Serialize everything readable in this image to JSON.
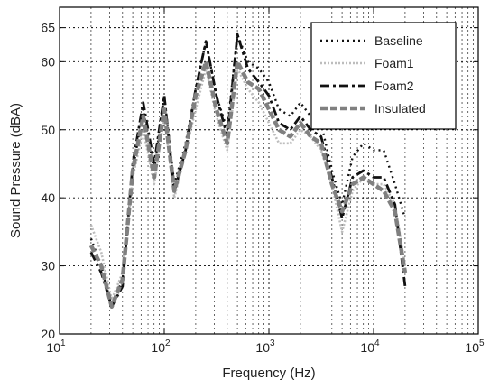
{
  "chart_data": {
    "type": "line",
    "title": "",
    "xlabel": "Frequency (Hz)",
    "ylabel": "Sound Pressure (dBA)",
    "xscale": "log",
    "xlim": [
      10,
      100000
    ],
    "ylim": [
      20,
      68
    ],
    "grid": true,
    "legend_position": "top-right",
    "x_ticks": [
      {
        "value": 10,
        "base": "10",
        "exp": "1"
      },
      {
        "value": 100,
        "base": "10",
        "exp": "2"
      },
      {
        "value": 1000,
        "base": "10",
        "exp": "3"
      },
      {
        "value": 10000,
        "base": "10",
        "exp": "4"
      },
      {
        "value": 100000,
        "base": "10",
        "exp": "5"
      }
    ],
    "y_ticks": [
      20,
      30,
      40,
      50,
      60,
      65
    ],
    "series": [
      {
        "name": "Baseline",
        "color": "#111111",
        "dash": "2,4",
        "width": 2.4,
        "points": [
          [
            20,
            34
          ],
          [
            25,
            30
          ],
          [
            31.5,
            24
          ],
          [
            40,
            28
          ],
          [
            50,
            44
          ],
          [
            63,
            53
          ],
          [
            80,
            44
          ],
          [
            100,
            55
          ],
          [
            125,
            42
          ],
          [
            160,
            48
          ],
          [
            200,
            56
          ],
          [
            250,
            63
          ],
          [
            315,
            55
          ],
          [
            400,
            50
          ],
          [
            500,
            64
          ],
          [
            630,
            60
          ],
          [
            800,
            59
          ],
          [
            1000,
            57
          ],
          [
            1250,
            53
          ],
          [
            1600,
            52
          ],
          [
            2000,
            54
          ],
          [
            2500,
            52
          ],
          [
            3150,
            51
          ],
          [
            4000,
            44
          ],
          [
            5000,
            39
          ],
          [
            6300,
            46
          ],
          [
            8000,
            48
          ],
          [
            10000,
            47
          ],
          [
            12500,
            47
          ],
          [
            16000,
            42
          ],
          [
            20000,
            37
          ]
        ]
      },
      {
        "name": "Foam1",
        "color": "#bdbdbd",
        "dash": "2,2",
        "width": 2.6,
        "points": [
          [
            20,
            36
          ],
          [
            25,
            32
          ],
          [
            31.5,
            25
          ],
          [
            40,
            29
          ],
          [
            50,
            43
          ],
          [
            63,
            50
          ],
          [
            80,
            42
          ],
          [
            100,
            52
          ],
          [
            125,
            40
          ],
          [
            160,
            47
          ],
          [
            200,
            53
          ],
          [
            250,
            59
          ],
          [
            315,
            52
          ],
          [
            400,
            47
          ],
          [
            500,
            59
          ],
          [
            630,
            56
          ],
          [
            800,
            54
          ],
          [
            1000,
            51
          ],
          [
            1250,
            48
          ],
          [
            1600,
            48
          ],
          [
            2000,
            50
          ],
          [
            2500,
            49
          ],
          [
            3150,
            47
          ],
          [
            4000,
            42
          ],
          [
            5000,
            35
          ],
          [
            6300,
            41
          ],
          [
            8000,
            43
          ],
          [
            10000,
            42
          ],
          [
            12500,
            42
          ],
          [
            16000,
            39
          ],
          [
            20000,
            30
          ]
        ]
      },
      {
        "name": "Foam2",
        "color": "#111111",
        "dash": "10,4,3,4",
        "width": 2.8,
        "points": [
          [
            20,
            32
          ],
          [
            25,
            29
          ],
          [
            31.5,
            24
          ],
          [
            40,
            27
          ],
          [
            50,
            45
          ],
          [
            63,
            54
          ],
          [
            80,
            45
          ],
          [
            100,
            55
          ],
          [
            125,
            41
          ],
          [
            160,
            47
          ],
          [
            200,
            56
          ],
          [
            250,
            63
          ],
          [
            315,
            55
          ],
          [
            400,
            49
          ],
          [
            500,
            64
          ],
          [
            630,
            59
          ],
          [
            800,
            57
          ],
          [
            1000,
            55
          ],
          [
            1250,
            51
          ],
          [
            1600,
            50
          ],
          [
            2000,
            52
          ],
          [
            2500,
            50
          ],
          [
            3150,
            49
          ],
          [
            4000,
            43
          ],
          [
            5000,
            37
          ],
          [
            6300,
            43
          ],
          [
            8000,
            44
          ],
          [
            10000,
            43
          ],
          [
            12500,
            43
          ],
          [
            16000,
            39
          ],
          [
            20000,
            27
          ]
        ]
      },
      {
        "name": "Insulated",
        "color": "#808080",
        "dash": "8,3",
        "width": 4.5,
        "points": [
          [
            20,
            33
          ],
          [
            25,
            30
          ],
          [
            31.5,
            24
          ],
          [
            40,
            28
          ],
          [
            50,
            44
          ],
          [
            63,
            52
          ],
          [
            80,
            43
          ],
          [
            100,
            53
          ],
          [
            125,
            41
          ],
          [
            160,
            47
          ],
          [
            200,
            55
          ],
          [
            250,
            60
          ],
          [
            315,
            53
          ],
          [
            400,
            48
          ],
          [
            500,
            60
          ],
          [
            630,
            57
          ],
          [
            800,
            56
          ],
          [
            1000,
            53
          ],
          [
            1250,
            50
          ],
          [
            1600,
            49
          ],
          [
            2000,
            51
          ],
          [
            2500,
            49
          ],
          [
            3150,
            48
          ],
          [
            4000,
            42
          ],
          [
            5000,
            38
          ],
          [
            6300,
            42
          ],
          [
            8000,
            43
          ],
          [
            10000,
            42
          ],
          [
            12500,
            41
          ],
          [
            16000,
            38
          ],
          [
            20000,
            29
          ]
        ]
      }
    ]
  }
}
